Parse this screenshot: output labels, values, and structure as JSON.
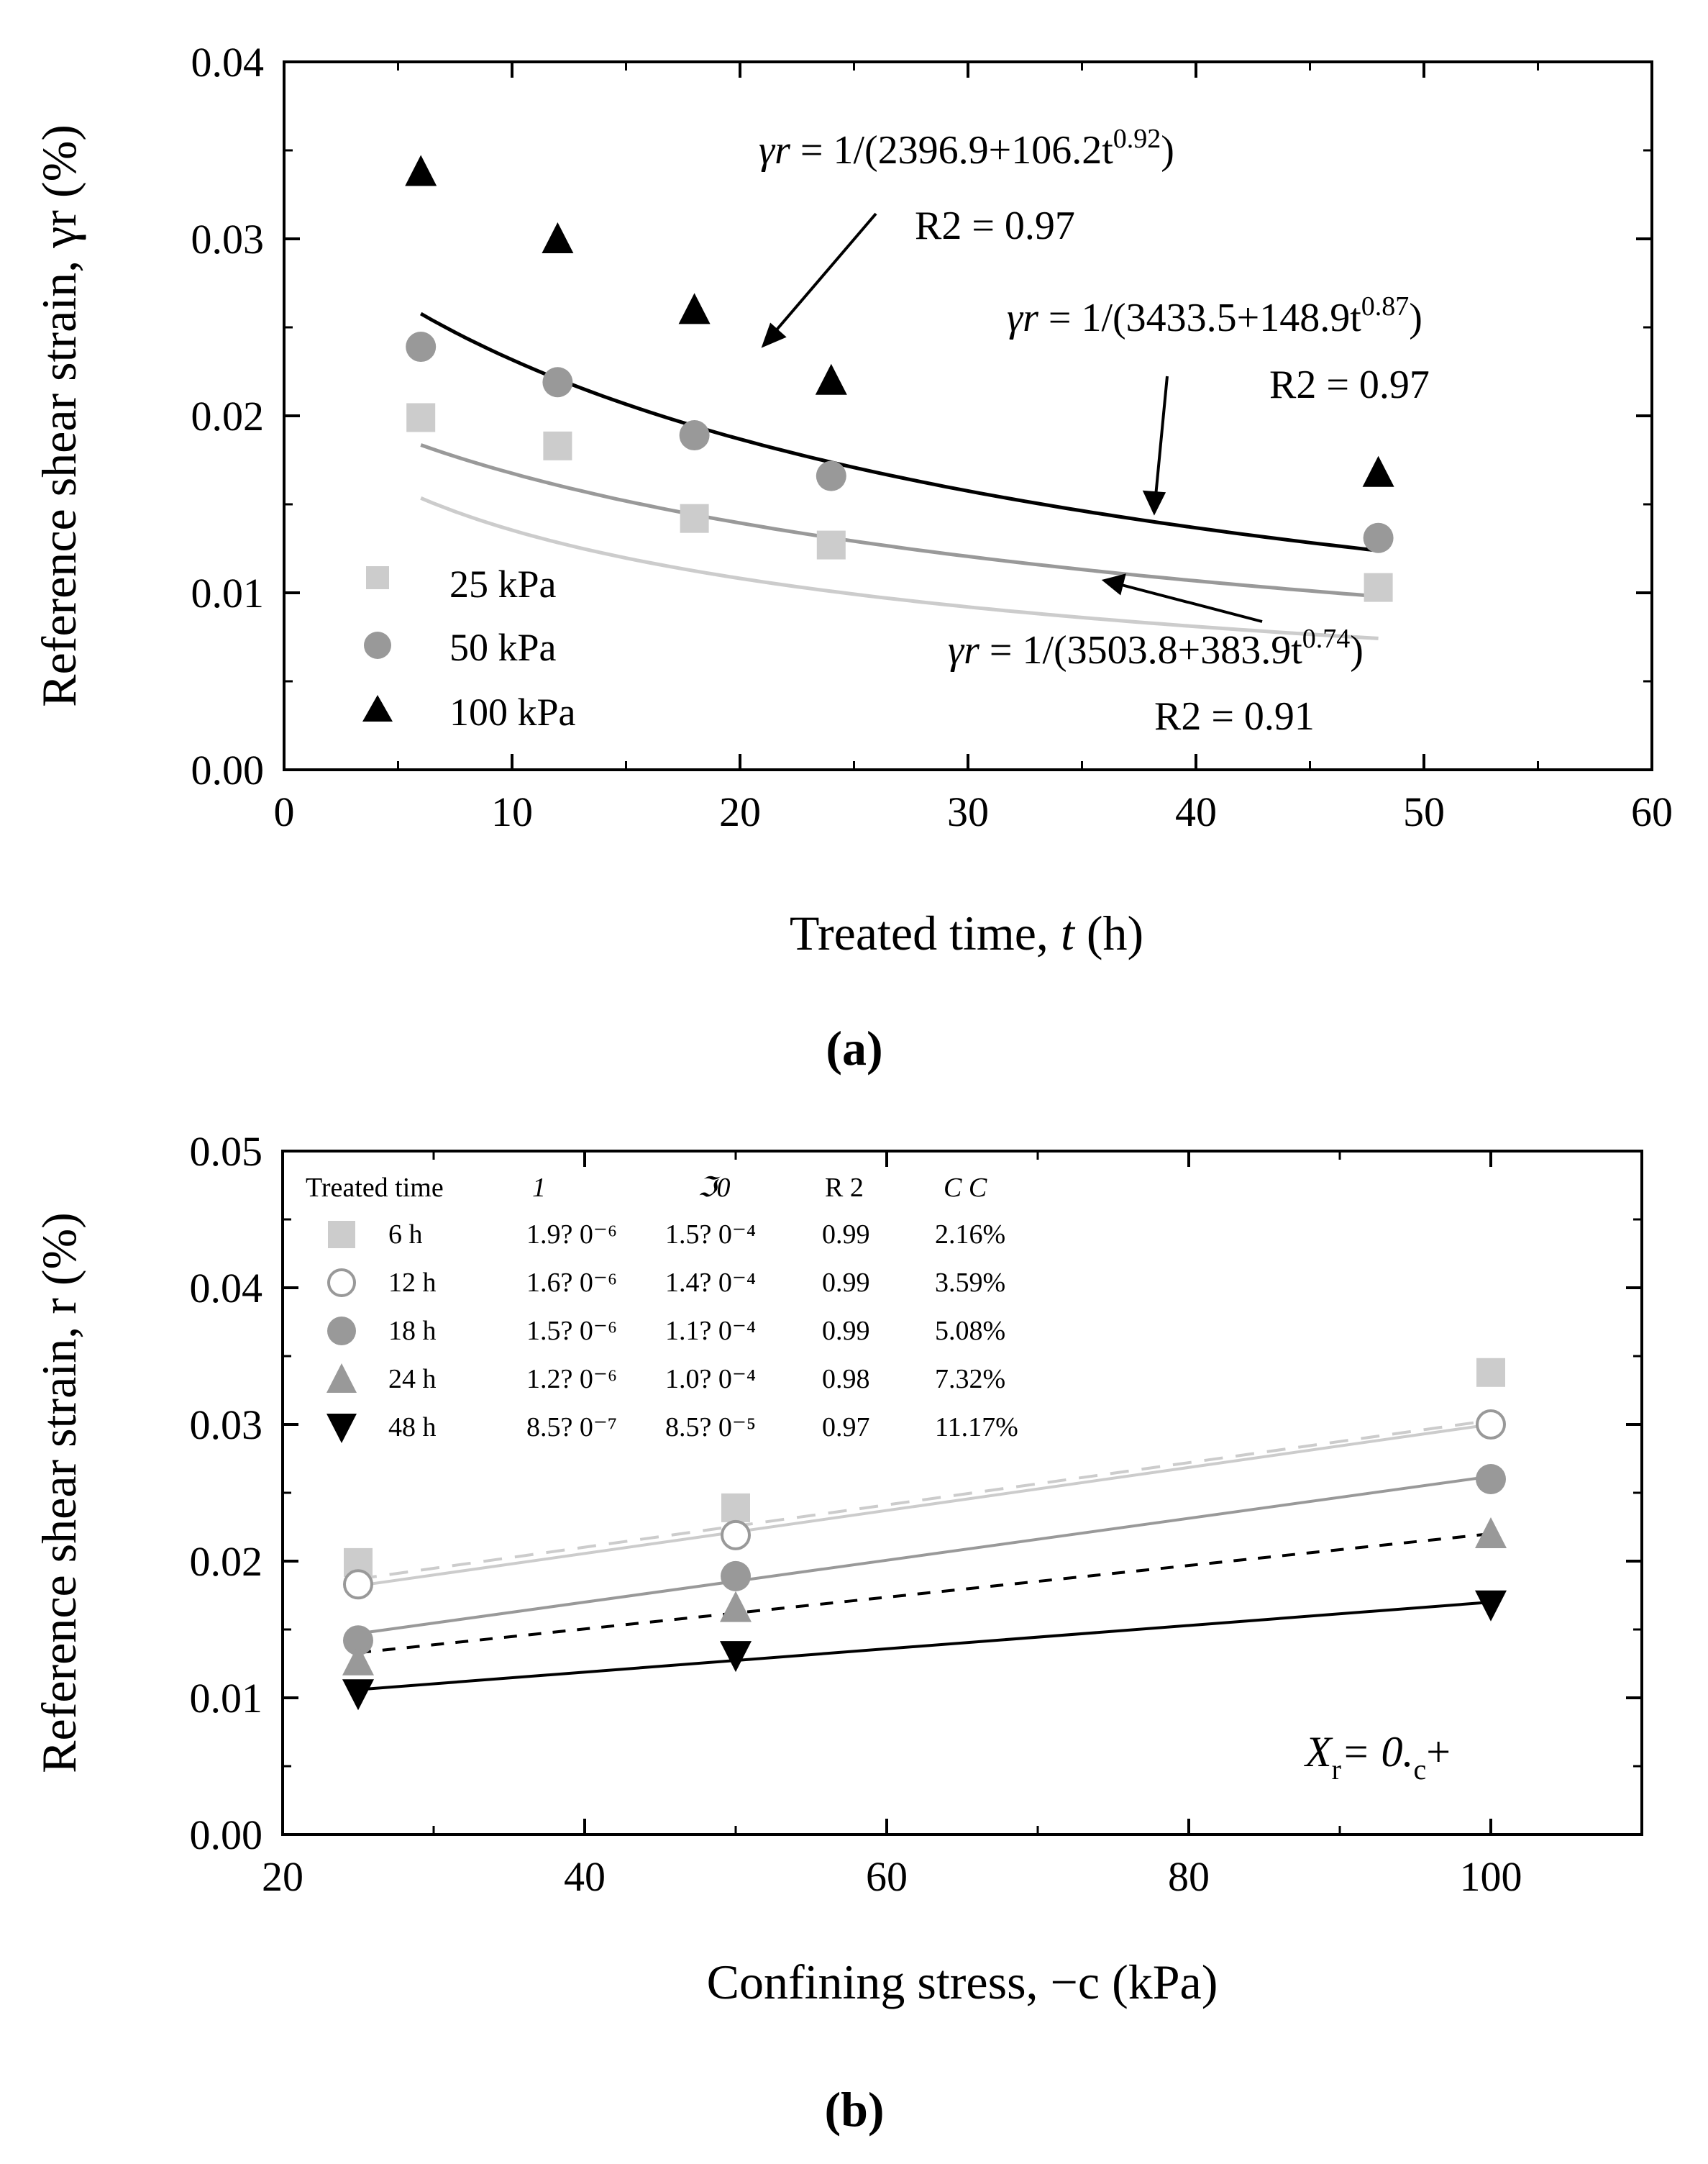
{
  "chart_data": [
    {
      "id": "a",
      "type": "scatter",
      "caption": "(a)",
      "xlabel": "Treated time, t (h)",
      "ylabel": "Reference shear strain, γr (%)",
      "xlim": [
        0,
        60
      ],
      "ylim": [
        0,
        0.04
      ],
      "xticks": [
        "0",
        "10",
        "20",
        "30",
        "40",
        "50",
        "60"
      ],
      "yticks": [
        "0.00",
        "0.01",
        "0.02",
        "0.03",
        "0.04"
      ],
      "series": [
        {
          "name": "25 kPa",
          "marker": "square",
          "color": "#cccccc",
          "x": [
            6,
            12,
            18,
            24,
            48
          ],
          "y": [
            0.0199,
            0.0183,
            0.0142,
            0.0127,
            0.0103
          ]
        },
        {
          "name": "50 kPa",
          "marker": "circle",
          "color": "#999999",
          "x": [
            6,
            12,
            18,
            24,
            48
          ],
          "y": [
            0.0239,
            0.0219,
            0.0189,
            0.0166,
            0.0131
          ]
        },
        {
          "name": "100 kPa",
          "marker": "triangle-up",
          "color": "#000000",
          "x": [
            6,
            12,
            18,
            24,
            48
          ],
          "y": [
            0.0338,
            0.03,
            0.026,
            0.022,
            0.0168
          ]
        }
      ],
      "fits": [
        {
          "series": "100 kPa",
          "a": 2396.9,
          "b": 106.2,
          "n": 0.92,
          "r2": "R2 = 0.97",
          "color": "#000000",
          "eq_prefix": "γr",
          "eq_body": " = 1/(2396.9+106.2t",
          "eq_exp": "0.92",
          "eq_close": ")"
        },
        {
          "series": "50 kPa",
          "a": 3433.5,
          "b": 148.9,
          "n": 0.87,
          "r2": "R2 = 0.97",
          "color": "#999999",
          "eq_prefix": "γr",
          "eq_body": " = 1/(3433.5+148.9t",
          "eq_exp": "0.87",
          "eq_close": ")"
        },
        {
          "series": "25 kPa",
          "a": 3503.8,
          "b": 383.9,
          "n": 0.74,
          "r2": "R2 = 0.91",
          "color": "#cccccc",
          "eq_prefix": "γr",
          "eq_body": " = 1/(3503.8+383.9t",
          "eq_exp": "0.74",
          "eq_close": ")"
        }
      ],
      "fit_scale": 76,
      "legend": [
        "25 kPa",
        "50 kPa",
        "100 kPa"
      ],
      "legend_position": "bottom-left"
    },
    {
      "id": "b",
      "type": "scatter",
      "caption": "(b)",
      "xlabel": "Confining stress, −c (kPa)",
      "ylabel": "Reference shear strain,   r (%)",
      "xlim": [
        20,
        110
      ],
      "ylim": [
        0,
        0.05
      ],
      "xticks": [
        "20",
        "40",
        "60",
        "80",
        "100"
      ],
      "yticks": [
        "0.00",
        "0.01",
        "0.02",
        "0.03",
        "0.04",
        "0.05"
      ],
      "table_header": [
        "Treated time",
        "1",
        "ℑ0",
        "R 2",
        "C C"
      ],
      "series": [
        {
          "name": "6 h",
          "marker": "square",
          "color": "#cccccc",
          "line": "dashed",
          "x": [
            25,
            50,
            100
          ],
          "y": [
            0.0199,
            0.0239,
            0.0338
          ],
          "row": [
            "1.9?  0⁻⁶",
            "1.5?  0⁻⁴",
            "0.99",
            "2.16%"
          ],
          "fit": [
            0.0187,
            0.0303
          ]
        },
        {
          "name": "12 h",
          "marker": "circle-open",
          "color": "#999999",
          "line": "solid-light",
          "x": [
            25,
            50,
            100
          ],
          "y": [
            0.0183,
            0.0219,
            0.03
          ],
          "row": [
            "1.6?  0⁻⁶",
            "1.4?  0⁻⁴",
            "0.99",
            "3.59%"
          ],
          "fit": [
            0.0182,
            0.03
          ]
        },
        {
          "name": "18 h",
          "marker": "circle",
          "color": "#999999",
          "line": "solid",
          "x": [
            25,
            50,
            100
          ],
          "y": [
            0.0142,
            0.0189,
            0.026
          ],
          "row": [
            "1.5?  0⁻⁶",
            "1.1?  0⁻⁴",
            "0.99",
            "5.08%"
          ],
          "fit": [
            0.0147,
            0.0262
          ]
        },
        {
          "name": "24 h",
          "marker": "triangle-up",
          "color": "#999999",
          "line": "dashed-black",
          "x": [
            25,
            50,
            100
          ],
          "y": [
            0.0127,
            0.0166,
            0.022
          ],
          "row": [
            "1.2?  0⁻⁶",
            "1.0?  0⁻⁴",
            "0.98",
            "7.32%"
          ],
          "fit": [
            0.0133,
            0.022
          ]
        },
        {
          "name": "48 h",
          "marker": "triangle-down",
          "color": "#000000",
          "line": "solid-black",
          "x": [
            25,
            50,
            100
          ],
          "y": [
            0.0103,
            0.0131,
            0.0168
          ],
          "row": [
            "8.5?  0⁻⁷",
            "8.5?  0⁻⁵",
            "0.97",
            "11.17%"
          ],
          "fit": [
            0.0106,
            0.017
          ]
        }
      ],
      "annotation": {
        "main": "X",
        "sub_r": "r",
        "rest": "= 0.",
        "sub_c": "c",
        "plus": "+"
      }
    }
  ]
}
